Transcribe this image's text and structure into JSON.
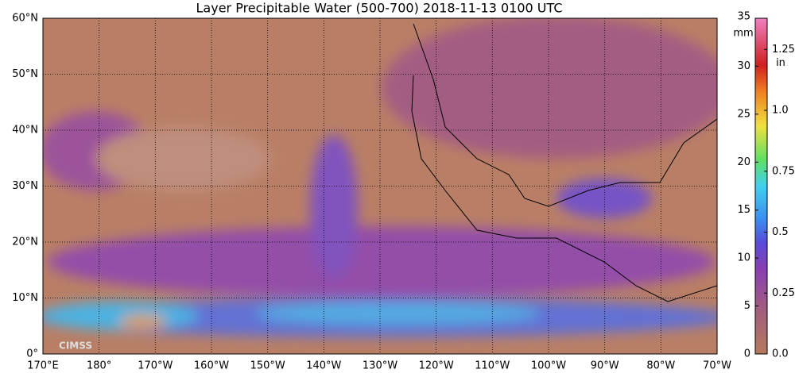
{
  "title": "Layer Precipitable Water (500-700)  2018-11-13 0100 UTC",
  "map": {
    "lat_labels": [
      "0°",
      "10°N",
      "20°N",
      "30°N",
      "40°N",
      "50°N",
      "60°N"
    ],
    "lon_labels": [
      "170°E",
      "180°",
      "170°W",
      "160°W",
      "150°W",
      "140°W",
      "130°W",
      "120°W",
      "110°W",
      "100°W",
      "90°W",
      "80°W",
      "70°W"
    ]
  },
  "colorbar": {
    "mm_label": "mm",
    "mm_lim": [
      0,
      35
    ],
    "mm_ticks": [
      0,
      5,
      10,
      15,
      20,
      25,
      30,
      35
    ],
    "in_label": "in",
    "in_lim": [
      0,
      1.378
    ],
    "in_ticks": [
      {
        "value": 0,
        "label": "0.0"
      },
      0.25,
      0.5,
      0.75,
      {
        "value": 1,
        "label": "1.0"
      },
      1.25
    ]
  },
  "logo": "CIMSS"
}
